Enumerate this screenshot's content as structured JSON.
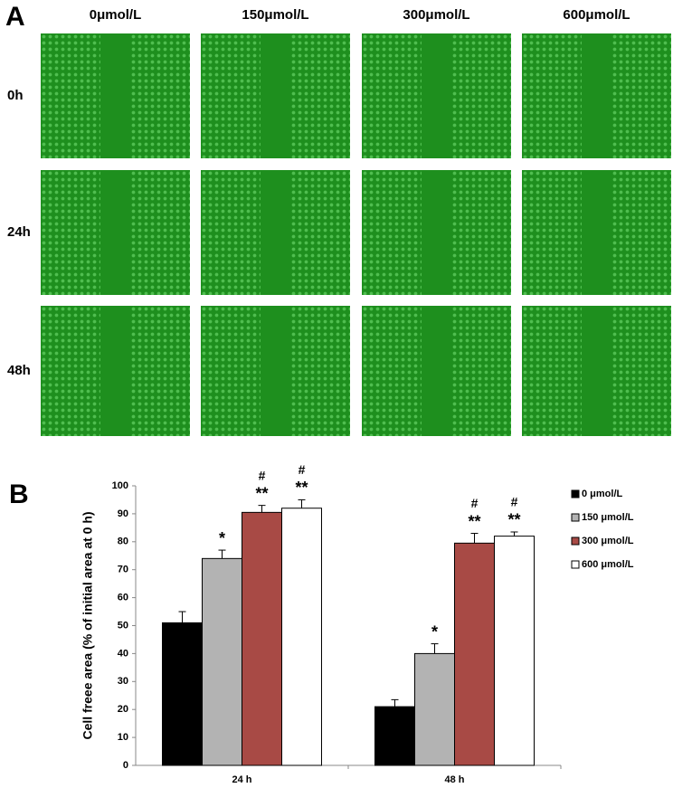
{
  "panel_a": {
    "label": "A",
    "columns": [
      "0μmol/L",
      "150μmol/L",
      "300μmol/L",
      "600μmol/L"
    ],
    "rows": [
      "0h",
      "24h",
      "48h"
    ]
  },
  "chart_data": {
    "type": "bar",
    "panel_label": "B",
    "ylabel": "Cell freee area (% of initial area at 0 h)",
    "categories": [
      "24 h",
      "48 h"
    ],
    "ylim": [
      0,
      100
    ],
    "yticks": [
      0,
      10,
      20,
      30,
      40,
      50,
      60,
      70,
      80,
      90,
      100
    ],
    "series": [
      {
        "name": "0 μmol/L",
        "color": "#000000",
        "values": [
          51,
          21
        ],
        "errors": [
          4,
          2.5
        ]
      },
      {
        "name": "150 μmol/L",
        "color": "#b3b3b3",
        "values": [
          74,
          40
        ],
        "errors": [
          3,
          3.5
        ],
        "stars": [
          "*",
          "*"
        ]
      },
      {
        "name": "300 μmol/L",
        "color": "#a84a45",
        "values": [
          90.5,
          79.5
        ],
        "errors": [
          2.5,
          3.5
        ],
        "stars": [
          "**",
          "**"
        ],
        "hash": [
          "#",
          "#"
        ]
      },
      {
        "name": "600 μmol/L",
        "color": "#ffffff",
        "values": [
          92,
          82
        ],
        "errors": [
          3,
          1.5
        ],
        "stars": [
          "**",
          "**"
        ],
        "hash": [
          "#",
          "#"
        ]
      }
    ]
  }
}
